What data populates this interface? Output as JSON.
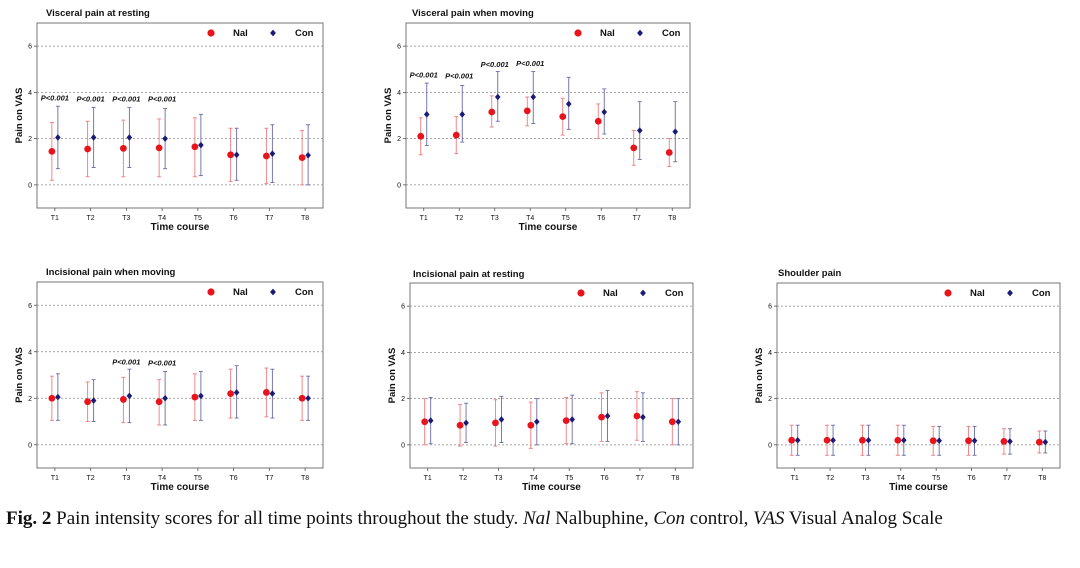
{
  "chart_data": [
    {
      "type": "scatter",
      "title": "Visceral pain at resting",
      "xlabel": "Time course",
      "ylabel": "Pain on VAS",
      "categories": [
        "T1",
        "T2",
        "T3",
        "T4",
        "T5",
        "T6",
        "T7",
        "T8"
      ],
      "ylim": [
        -1,
        7
      ],
      "yticks": [
        0,
        2,
        4,
        6
      ],
      "grid": true,
      "legend": "top-right",
      "series": [
        {
          "name": "Nal",
          "color": "#e8141c",
          "marker": "circle",
          "values": [
            1.45,
            1.55,
            1.58,
            1.6,
            1.65,
            1.3,
            1.25,
            1.18
          ],
          "lower": [
            0.2,
            0.35,
            0.35,
            0.35,
            0.35,
            0.15,
            0.05,
            0.0
          ],
          "upper": [
            2.7,
            2.75,
            2.8,
            2.85,
            2.9,
            2.45,
            2.45,
            2.35
          ]
        },
        {
          "name": "Con",
          "color": "#1a1a78",
          "marker": "diamond",
          "values": [
            2.05,
            2.05,
            2.05,
            2.0,
            1.72,
            1.3,
            1.35,
            1.28
          ],
          "lower": [
            0.7,
            0.75,
            0.75,
            0.7,
            0.4,
            0.2,
            0.1,
            0.0
          ],
          "upper": [
            3.4,
            3.35,
            3.35,
            3.3,
            3.05,
            2.45,
            2.6,
            2.6
          ]
        }
      ],
      "annotations": [
        {
          "category": "T1",
          "text": "P<0.001",
          "y": 3.65
        },
        {
          "category": "T2",
          "text": "P<0.001",
          "y": 3.6
        },
        {
          "category": "T3",
          "text": "P<0.001",
          "y": 3.6
        },
        {
          "category": "T4",
          "text": "P<0.001",
          "y": 3.6
        }
      ]
    },
    {
      "type": "scatter",
      "title": "Visceral pain when moving",
      "xlabel": "Time course",
      "ylabel": "Pain on VAS",
      "categories": [
        "T1",
        "T2",
        "T3",
        "T4",
        "T5",
        "T6",
        "T7",
        "T8"
      ],
      "ylim": [
        -1,
        7
      ],
      "yticks": [
        0,
        2,
        4,
        6
      ],
      "grid": true,
      "legend": "top-right",
      "series": [
        {
          "name": "Nal",
          "color": "#e8141c",
          "marker": "circle",
          "values": [
            2.1,
            2.15,
            3.15,
            3.2,
            2.95,
            2.75,
            1.6,
            1.4
          ],
          "lower": [
            1.3,
            1.35,
            2.5,
            2.55,
            2.15,
            2.0,
            0.85,
            0.8
          ],
          "upper": [
            2.9,
            2.95,
            3.85,
            3.8,
            3.75,
            3.5,
            2.35,
            2.0
          ]
        },
        {
          "name": "Con",
          "color": "#1a1a78",
          "marker": "diamond",
          "values": [
            3.05,
            3.05,
            3.8,
            3.8,
            3.5,
            3.15,
            2.35,
            2.3
          ],
          "lower": [
            1.7,
            1.85,
            2.75,
            2.65,
            2.4,
            2.2,
            1.1,
            1.0
          ],
          "upper": [
            4.4,
            4.3,
            4.9,
            4.9,
            4.65,
            4.15,
            3.6,
            3.6
          ]
        },
        {
          "name": "_",
          "values": []
        }
      ],
      "annotations": [
        {
          "category": "T1",
          "text": "P<0.001",
          "y": 4.65
        },
        {
          "category": "T2",
          "text": "P<0.001",
          "y": 4.6
        },
        {
          "category": "T3",
          "text": "P<0.001",
          "y": 5.1
        },
        {
          "category": "T4",
          "text": "P<0.001",
          "y": 5.15
        }
      ]
    },
    {
      "type": "scatter",
      "title": "Incisional pain when moving",
      "xlabel": "Time course",
      "ylabel": "Pain on VAS",
      "categories": [
        "T1",
        "T2",
        "T3",
        "T4",
        "T5",
        "T6",
        "T7",
        "T8"
      ],
      "ylim": [
        -1,
        7
      ],
      "yticks": [
        0,
        2,
        4,
        6
      ],
      "grid": true,
      "legend": "top-right",
      "series": [
        {
          "name": "Nal",
          "color": "#e8141c",
          "marker": "circle",
          "values": [
            2.0,
            1.85,
            1.95,
            1.85,
            2.05,
            2.2,
            2.25,
            2.0
          ],
          "lower": [
            1.05,
            1.0,
            0.95,
            0.85,
            1.05,
            1.15,
            1.2,
            1.05
          ],
          "upper": [
            2.95,
            2.7,
            2.9,
            2.8,
            3.05,
            3.25,
            3.3,
            2.95
          ]
        },
        {
          "name": "Con",
          "color": "#1a1a78",
          "marker": "diamond",
          "values": [
            2.05,
            1.9,
            2.1,
            2.0,
            2.1,
            2.25,
            2.2,
            2.0
          ],
          "lower": [
            1.05,
            1.0,
            0.95,
            0.85,
            1.05,
            1.15,
            1.15,
            1.05
          ],
          "upper": [
            3.05,
            2.8,
            3.25,
            3.15,
            3.15,
            3.4,
            3.25,
            2.95
          ]
        }
      ],
      "annotations": [
        {
          "category": "T3",
          "text": "P<0.001",
          "y": 3.45
        },
        {
          "category": "T4",
          "text": "P<0.001",
          "y": 3.4
        }
      ]
    },
    {
      "type": "scatter",
      "title": "Incisional pain at resting",
      "xlabel": "Time course",
      "ylabel": "Pain on VAS",
      "categories": [
        "T1",
        "T2",
        "T3",
        "T4",
        "T5",
        "T6",
        "T7",
        "T8"
      ],
      "ylim": [
        -1,
        7
      ],
      "yticks": [
        0,
        2,
        4,
        6
      ],
      "grid": true,
      "legend": "top-right",
      "series": [
        {
          "name": "Nal",
          "color": "#e8141c",
          "marker": "circle",
          "values": [
            1.0,
            0.85,
            0.95,
            0.85,
            1.05,
            1.2,
            1.25,
            1.0
          ],
          "lower": [
            0.0,
            -0.05,
            -0.05,
            -0.15,
            0.05,
            0.15,
            0.2,
            0.0
          ],
          "upper": [
            2.0,
            1.75,
            1.95,
            1.85,
            2.05,
            2.25,
            2.3,
            2.0
          ]
        },
        {
          "name": "Con",
          "color": "#1a1a78",
          "marker": "diamond",
          "values": [
            1.05,
            0.95,
            1.1,
            1.0,
            1.1,
            1.25,
            1.2,
            1.0
          ],
          "lower": [
            0.05,
            0.1,
            0.1,
            0.0,
            0.05,
            0.15,
            0.15,
            0.0
          ],
          "upper": [
            2.05,
            1.8,
            2.1,
            2.0,
            2.15,
            2.35,
            2.25,
            2.0
          ]
        }
      ],
      "annotations": []
    },
    {
      "type": "scatter",
      "title": "Shoulder pain",
      "xlabel": "Time course",
      "ylabel": "Pain on VAS",
      "categories": [
        "T1",
        "T2",
        "T3",
        "T4",
        "T5",
        "T6",
        "T7",
        "T8"
      ],
      "ylim": [
        -1,
        7
      ],
      "yticks": [
        0,
        2,
        4,
        6
      ],
      "grid": true,
      "legend": "top-right",
      "series": [
        {
          "name": "Nal",
          "color": "#e8141c",
          "marker": "circle",
          "values": [
            0.2,
            0.2,
            0.2,
            0.2,
            0.18,
            0.18,
            0.15,
            0.12
          ],
          "lower": [
            -0.45,
            -0.45,
            -0.45,
            -0.45,
            -0.45,
            -0.45,
            -0.4,
            -0.35
          ],
          "upper": [
            0.85,
            0.85,
            0.85,
            0.85,
            0.8,
            0.8,
            0.7,
            0.6
          ]
        },
        {
          "name": "Con",
          "color": "#1a1a78",
          "marker": "diamond",
          "values": [
            0.2,
            0.2,
            0.2,
            0.2,
            0.18,
            0.18,
            0.15,
            0.12
          ],
          "lower": [
            -0.45,
            -0.45,
            -0.45,
            -0.45,
            -0.45,
            -0.45,
            -0.4,
            -0.35
          ],
          "upper": [
            0.85,
            0.85,
            0.85,
            0.85,
            0.8,
            0.8,
            0.7,
            0.6
          ]
        }
      ],
      "annotations": []
    }
  ],
  "caption": {
    "label": "Fig. 2",
    "text": "Pain intensity scores for all time points throughout the study.",
    "abbr1": "Nal",
    "abbr1_def": "Nalbuphine,",
    "abbr2": "Con",
    "abbr2_def": "control,",
    "abbr3": "VAS",
    "abbr3_def": "Visual Analog Scale"
  }
}
